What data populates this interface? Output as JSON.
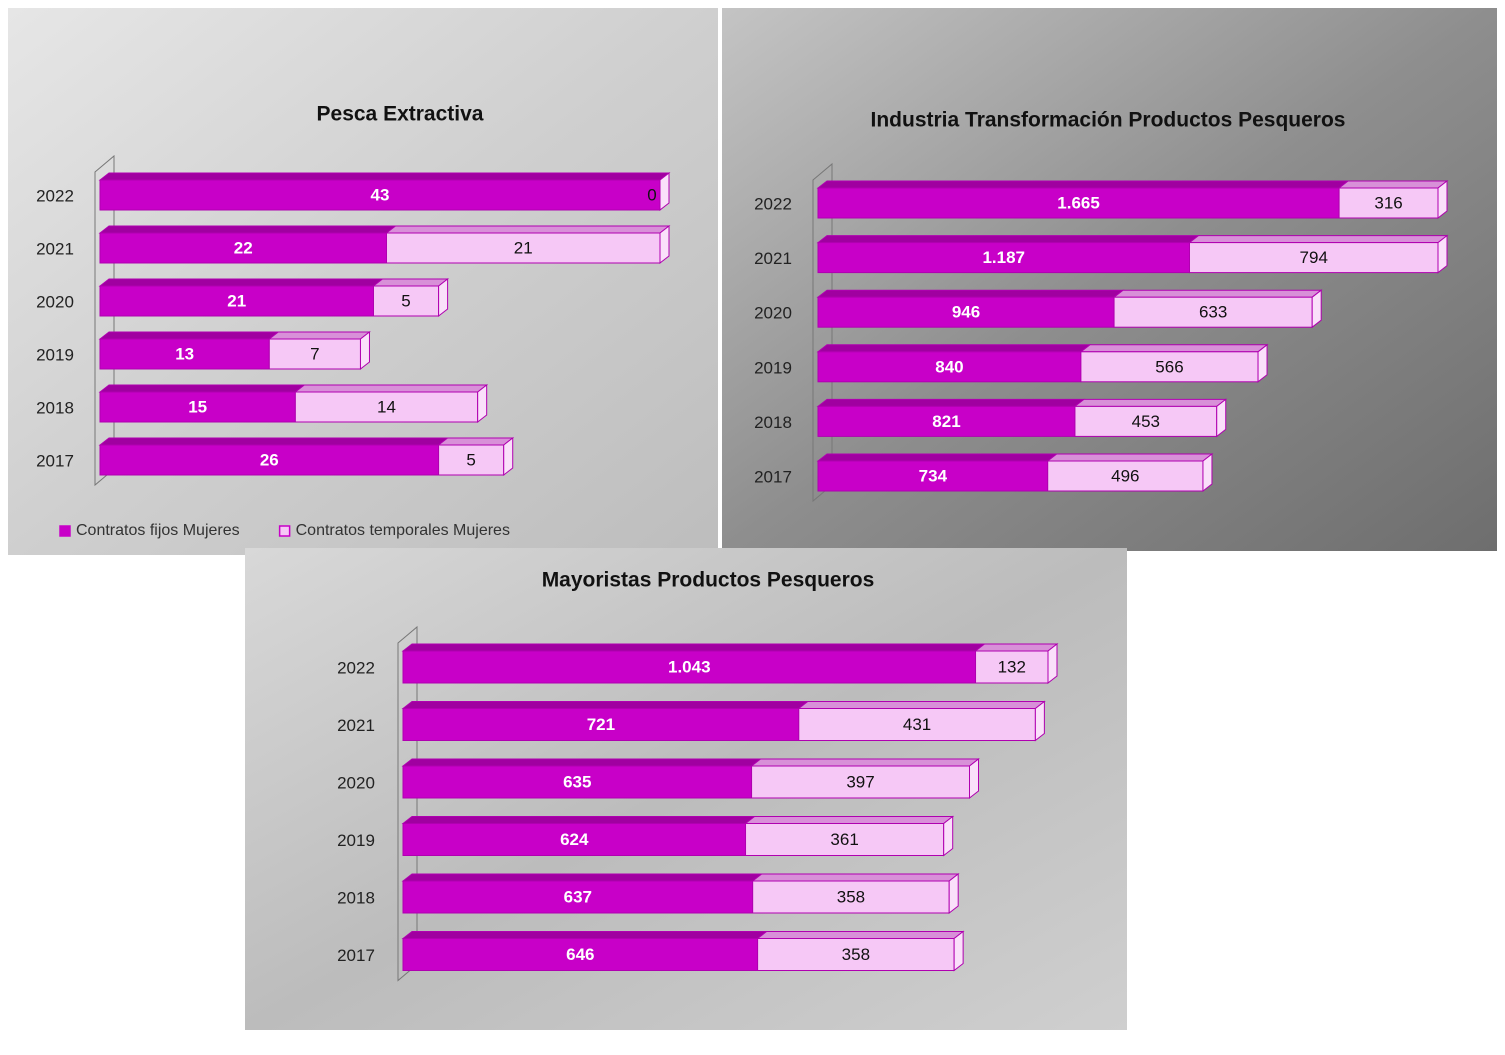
{
  "chart_data": [
    {
      "type": "bar",
      "stacked": true,
      "orientation": "horizontal",
      "title": "Pesca Extractiva",
      "categories": [
        "2022",
        "2021",
        "2020",
        "2019",
        "2018",
        "2017"
      ],
      "series": [
        {
          "name": "Contratos fijos Mujeres",
          "color": "#c800c8",
          "values": [
            43,
            22,
            21,
            13,
            15,
            26
          ]
        },
        {
          "name": "Contratos temporales Mujeres",
          "color": "#f6c8f6",
          "values": [
            0,
            21,
            5,
            7,
            14,
            5
          ]
        }
      ],
      "legend": "bottom"
    },
    {
      "type": "bar",
      "stacked": true,
      "orientation": "horizontal",
      "title": "Industria Transformación Productos Pesqueros",
      "categories": [
        "2022",
        "2021",
        "2020",
        "2019",
        "2018",
        "2017"
      ],
      "series": [
        {
          "color": "#c800c8",
          "values": [
            1665,
            1187,
            946,
            840,
            821,
            734
          ],
          "value_labels": [
            "1.665",
            "1.187",
            "946",
            "840",
            "821",
            "734"
          ]
        },
        {
          "color": "#f6c8f6",
          "values": [
            316,
            794,
            633,
            566,
            453,
            496
          ]
        }
      ]
    },
    {
      "type": "bar",
      "stacked": true,
      "orientation": "horizontal",
      "title": "Mayoristas Productos Pesqueros",
      "categories": [
        "2022",
        "2021",
        "2020",
        "2019",
        "2018",
        "2017"
      ],
      "series": [
        {
          "color": "#c800c8",
          "values": [
            1043,
            721,
            635,
            624,
            637,
            646
          ],
          "value_labels": [
            "1.043",
            "721",
            "635",
            "624",
            "637",
            "646"
          ]
        },
        {
          "color": "#f6c8f6",
          "values": [
            132,
            431,
            397,
            361,
            358,
            358
          ]
        }
      ]
    }
  ]
}
